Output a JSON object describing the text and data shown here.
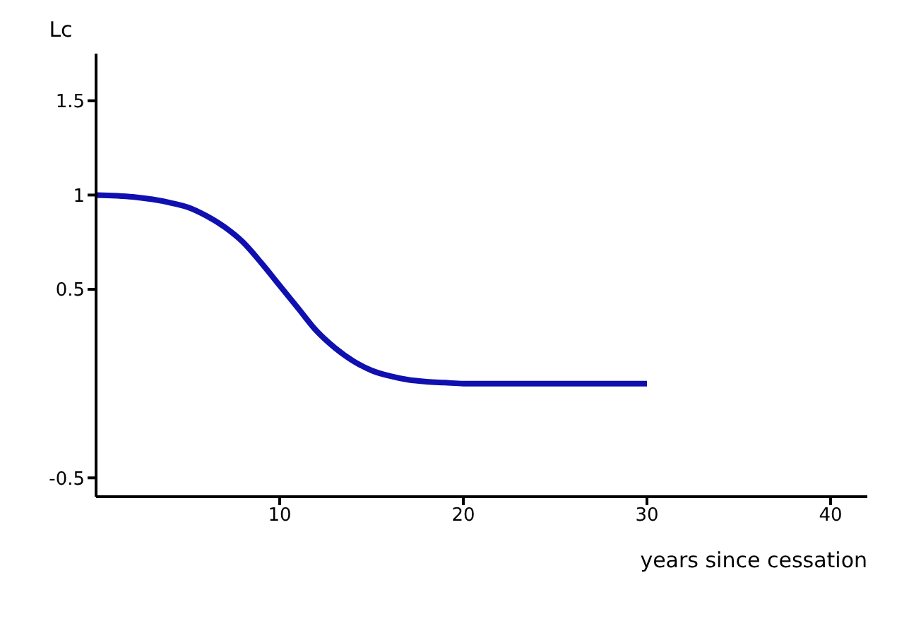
{
  "chart_data": {
    "type": "line",
    "xlabel": "years since cessation",
    "ylabel": "Lc",
    "x": [
      0,
      2,
      4,
      5,
      6,
      7,
      8,
      9,
      10,
      11,
      12,
      13,
      14,
      15,
      16,
      17,
      18,
      19,
      20,
      22,
      25,
      30
    ],
    "series": [
      {
        "color": "#1010b0",
        "values": [
          1,
          0.99,
          0.96,
          0.935,
          0.89,
          0.83,
          0.75,
          0.64,
          0.52,
          0.4,
          0.28,
          0.19,
          0.12,
          0.07,
          0.04,
          0.02,
          0.01,
          0.005,
          0,
          0,
          0,
          0
        ]
      }
    ],
    "xlim": [
      0,
      42
    ],
    "xticks": [
      10,
      20,
      30,
      40
    ],
    "ylim": [
      -0.6,
      1.75
    ],
    "yticks": [
      -0.5,
      0.5,
      1,
      1.5
    ],
    "marker": "none",
    "line_style": "solid"
  }
}
